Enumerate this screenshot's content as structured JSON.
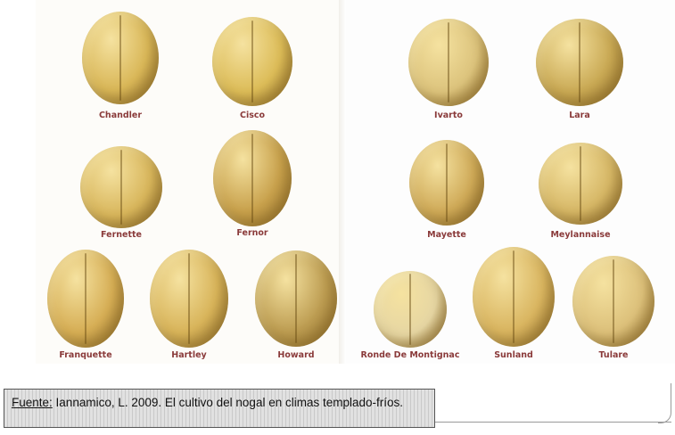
{
  "varieties": [
    {
      "name": "Chandler",
      "color": "#d9b758"
    },
    {
      "name": "Cisco",
      "color": "#dcbc58"
    },
    {
      "name": "Ivarto",
      "color": "#dcc37c"
    },
    {
      "name": "Lara",
      "color": "#c9a954"
    },
    {
      "name": "Fernette",
      "color": "#d8b65c"
    },
    {
      "name": "Fernor",
      "color": "#c8a14c"
    },
    {
      "name": "Mayette",
      "color": "#cfaa58"
    },
    {
      "name": "Meylannaise",
      "color": "#d6b766"
    },
    {
      "name": "Franquette",
      "color": "#d6ae55"
    },
    {
      "name": "Hartley",
      "color": "#d8b45a"
    },
    {
      "name": "Howard",
      "color": "#bd9d52"
    },
    {
      "name": "Ronde De Montignac",
      "color": "#e6d6a3"
    },
    {
      "name": "Sunland",
      "color": "#d9b560"
    },
    {
      "name": "Tulare",
      "color": "#dcc07a"
    }
  ],
  "caption": {
    "source_label": "Fuente:",
    "text": "Iannamico, L.  2009.  El cultivo del nogal en climas templado-fríos."
  }
}
